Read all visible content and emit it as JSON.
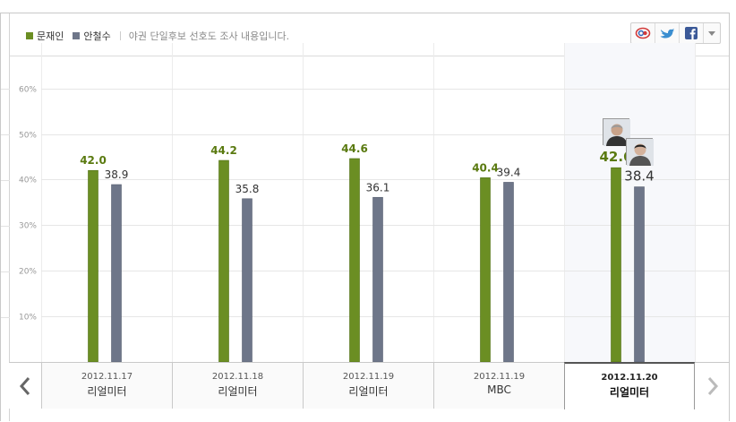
{
  "legend": {
    "series": [
      {
        "name": "문재인",
        "color": "#6b8e23"
      },
      {
        "name": "안철수",
        "color": "#6e7689"
      }
    ],
    "note": "야권 단일후보 선호도 조사 내용입니다."
  },
  "share": {
    "icons": [
      "me2day-icon",
      "twitter-icon",
      "facebook-icon"
    ],
    "more_icon": "dropdown-arrow-icon"
  },
  "navigation": {
    "prev_icon": "chevron-left-icon",
    "next_icon": "chevron-right-icon"
  },
  "chart_data": {
    "type": "bar",
    "categories": [
      {
        "date": "2012.11.17",
        "source": "리얼미터"
      },
      {
        "date": "2012.11.18",
        "source": "리얼미터"
      },
      {
        "date": "2012.11.19",
        "source": "리얼미터"
      },
      {
        "date": "2012.11.19",
        "source": "MBC"
      },
      {
        "date": "2012.11.20",
        "source": "리얼미터"
      }
    ],
    "series": [
      {
        "name": "문재인",
        "color": "#6b8e23",
        "label_color": "#5a7a10",
        "values": [
          42.0,
          44.2,
          44.6,
          40.4,
          42.6
        ]
      },
      {
        "name": "안철수",
        "color": "#6e7689",
        "label_color": "#333333",
        "values": [
          38.9,
          35.8,
          36.1,
          39.4,
          38.4
        ]
      }
    ],
    "value_labels": [
      [
        "42.0",
        "44.2",
        "44.6",
        "40.4",
        "42.6"
      ],
      [
        "38.9",
        "35.8",
        "36.1",
        "39.4",
        "38.4"
      ]
    ],
    "y_ticks": [
      "10%",
      "20%",
      "30%",
      "40%",
      "50%",
      "60%"
    ],
    "ylim": [
      0,
      60
    ],
    "active_index": 4,
    "grid": true
  }
}
